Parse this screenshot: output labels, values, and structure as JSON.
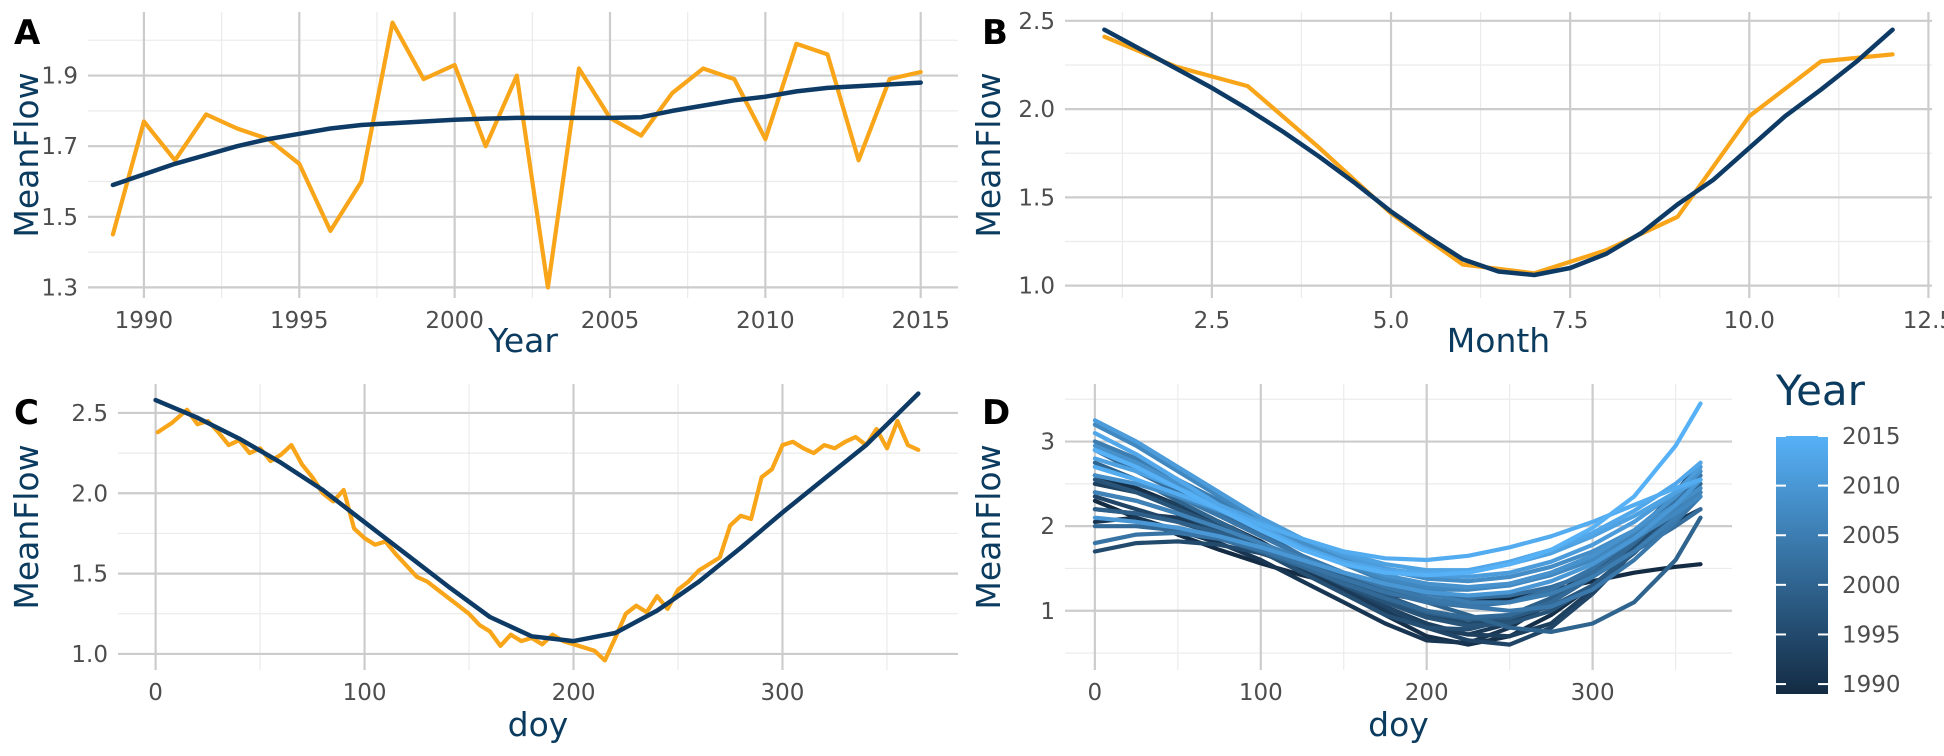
{
  "colors": {
    "observed": "#f9a51a",
    "smooth": "#0d3b66",
    "grid_major": "#cccccc",
    "grid_minor": "#ebebeb",
    "tick_text": "#4d4d4d",
    "axis_title": "#0b3b5e",
    "year_low": "#132b43",
    "year_high": "#56b1f7"
  },
  "chart_data": [
    {
      "panel": "A",
      "type": "line",
      "xlabel": "Year",
      "ylabel": "MeanFlow",
      "xlim": [
        1988.2,
        2016.2
      ],
      "ylim": [
        1.27,
        2.08
      ],
      "xticks": [
        1990,
        1995,
        2000,
        2005,
        2010,
        2015
      ],
      "yticks": [
        1.3,
        1.5,
        1.7,
        1.9
      ],
      "ytick_labels": [
        "1.3",
        "1.5",
        "1.7",
        "1.9"
      ],
      "grid": true,
      "series": [
        {
          "role": "observed",
          "x": [
            1989,
            1990,
            1991,
            1992,
            1993,
            1994,
            1995,
            1996,
            1997,
            1998,
            1999,
            2000,
            2001,
            2002,
            2003,
            2004,
            2005,
            2006,
            2007,
            2008,
            2009,
            2010,
            2011,
            2012,
            2013,
            2014,
            2015
          ],
          "y": [
            1.45,
            1.77,
            1.66,
            1.79,
            1.75,
            1.72,
            1.65,
            1.46,
            1.6,
            2.05,
            1.89,
            1.93,
            1.7,
            1.9,
            1.3,
            1.92,
            1.78,
            1.73,
            1.85,
            1.92,
            1.89,
            1.72,
            1.99,
            1.96,
            1.66,
            1.89,
            1.91
          ]
        },
        {
          "role": "smooth",
          "x": [
            1989,
            1990,
            1991,
            1992,
            1993,
            1994,
            1995,
            1996,
            1997,
            1998,
            1999,
            2000,
            2001,
            2002,
            2003,
            2004,
            2005,
            2006,
            2007,
            2008,
            2009,
            2010,
            2011,
            2012,
            2013,
            2014,
            2015
          ],
          "y": [
            1.59,
            1.62,
            1.65,
            1.675,
            1.7,
            1.72,
            1.735,
            1.75,
            1.76,
            1.765,
            1.77,
            1.775,
            1.778,
            1.78,
            1.78,
            1.78,
            1.78,
            1.782,
            1.8,
            1.815,
            1.83,
            1.84,
            1.855,
            1.865,
            1.87,
            1.875,
            1.88
          ]
        }
      ]
    },
    {
      "panel": "B",
      "type": "line",
      "xlabel": "Month",
      "ylabel": "MeanFlow",
      "xlim": [
        0.45,
        12.55
      ],
      "ylim": [
        0.93,
        2.55
      ],
      "xticks": [
        2.5,
        5.0,
        7.5,
        10.0,
        12.5
      ],
      "xtick_labels": [
        "2.5",
        "5.0",
        "7.5",
        "10.0",
        "12.5"
      ],
      "yticks": [
        1.0,
        1.5,
        2.0,
        2.5
      ],
      "ytick_labels": [
        "1.0",
        "1.5",
        "2.0",
        "2.5"
      ],
      "grid": true,
      "series": [
        {
          "role": "observed",
          "x": [
            1,
            2,
            3,
            4,
            5,
            6,
            7,
            8,
            9,
            10,
            11,
            12
          ],
          "y": [
            2.41,
            2.24,
            2.13,
            1.78,
            1.41,
            1.12,
            1.07,
            1.2,
            1.39,
            1.96,
            2.27,
            2.31
          ]
        },
        {
          "role": "smooth",
          "x": [
            1,
            1.5,
            2,
            2.5,
            3,
            3.5,
            4,
            4.5,
            5,
            5.5,
            6,
            6.5,
            7,
            7.5,
            8,
            8.5,
            9,
            9.5,
            10,
            10.5,
            11,
            11.5,
            12
          ],
          "y": [
            2.45,
            2.34,
            2.23,
            2.12,
            2.0,
            1.87,
            1.73,
            1.58,
            1.42,
            1.28,
            1.15,
            1.08,
            1.06,
            1.1,
            1.18,
            1.3,
            1.46,
            1.6,
            1.78,
            1.96,
            2.11,
            2.27,
            2.45
          ]
        }
      ]
    },
    {
      "panel": "C",
      "type": "line",
      "xlabel": "doy",
      "ylabel": "MeanFlow",
      "xlim": [
        -18,
        384
      ],
      "ylim": [
        0.9,
        2.68
      ],
      "xticks": [
        0,
        100,
        200,
        300
      ],
      "yticks": [
        1.0,
        1.5,
        2.0,
        2.5
      ],
      "ytick_labels": [
        "1.0",
        "1.5",
        "2.0",
        "2.5"
      ],
      "grid": true,
      "series": [
        {
          "role": "observed",
          "x": [
            1,
            8,
            15,
            20,
            25,
            30,
            35,
            40,
            45,
            50,
            55,
            60,
            65,
            70,
            75,
            80,
            85,
            90,
            95,
            100,
            105,
            110,
            115,
            120,
            125,
            130,
            135,
            140,
            145,
            150,
            155,
            160,
            165,
            170,
            175,
            180,
            185,
            190,
            195,
            200,
            205,
            210,
            215,
            220,
            225,
            230,
            235,
            240,
            245,
            250,
            255,
            260,
            265,
            270,
            275,
            280,
            285,
            290,
            295,
            300,
            305,
            310,
            315,
            320,
            325,
            330,
            335,
            340,
            345,
            350,
            355,
            360,
            365
          ],
          "y": [
            2.38,
            2.44,
            2.52,
            2.43,
            2.45,
            2.38,
            2.3,
            2.33,
            2.25,
            2.28,
            2.2,
            2.24,
            2.3,
            2.18,
            2.1,
            2.0,
            1.95,
            2.02,
            1.78,
            1.72,
            1.68,
            1.7,
            1.62,
            1.55,
            1.48,
            1.45,
            1.4,
            1.35,
            1.3,
            1.25,
            1.18,
            1.14,
            1.05,
            1.12,
            1.08,
            1.1,
            1.06,
            1.12,
            1.08,
            1.06,
            1.04,
            1.02,
            0.96,
            1.1,
            1.25,
            1.3,
            1.26,
            1.36,
            1.28,
            1.4,
            1.45,
            1.52,
            1.56,
            1.6,
            1.8,
            1.86,
            1.84,
            2.1,
            2.15,
            2.3,
            2.32,
            2.28,
            2.25,
            2.3,
            2.28,
            2.32,
            2.35,
            2.3,
            2.4,
            2.28,
            2.45,
            2.3,
            2.27
          ]
        },
        {
          "role": "smooth",
          "x": [
            0,
            20,
            40,
            60,
            80,
            100,
            120,
            140,
            160,
            180,
            200,
            220,
            240,
            260,
            280,
            300,
            320,
            340,
            365
          ],
          "y": [
            2.58,
            2.47,
            2.34,
            2.19,
            2.02,
            1.82,
            1.62,
            1.42,
            1.23,
            1.11,
            1.08,
            1.13,
            1.27,
            1.45,
            1.66,
            1.88,
            2.09,
            2.3,
            2.62
          ]
        }
      ]
    },
    {
      "panel": "D",
      "type": "line",
      "xlabel": "doy",
      "ylabel": "MeanFlow",
      "xlim": [
        -18,
        384
      ],
      "ylim": [
        0.3,
        3.68
      ],
      "xticks": [
        0,
        100,
        200,
        300
      ],
      "yticks": [
        1,
        2,
        3
      ],
      "grid": true,
      "legend": {
        "title": "Year",
        "position": "right",
        "type": "colorbar",
        "min": 1989,
        "max": 2015,
        "ticks": [
          1990,
          1995,
          2000,
          2005,
          2010,
          2015
        ]
      },
      "x": [
        0,
        25,
        50,
        75,
        100,
        125,
        150,
        175,
        200,
        225,
        250,
        275,
        300,
        325,
        350,
        365
      ],
      "series": [
        {
          "year": 1989,
          "y": [
            2.3,
            2.1,
            1.9,
            1.72,
            1.56,
            1.42,
            1.3,
            1.2,
            1.12,
            1.1,
            1.15,
            1.24,
            1.35,
            1.45,
            1.52,
            1.55
          ]
        },
        {
          "year": 1990,
          "y": [
            2.6,
            2.45,
            2.25,
            2.05,
            1.82,
            1.55,
            1.25,
            0.95,
            0.7,
            0.6,
            0.7,
            0.95,
            1.3,
            1.7,
            2.15,
            2.4
          ]
        },
        {
          "year": 1991,
          "y": [
            2.05,
            2.1,
            1.95,
            1.8,
            1.6,
            1.35,
            1.1,
            0.85,
            0.65,
            0.62,
            0.8,
            1.1,
            1.45,
            1.75,
            2.05,
            2.2
          ]
        },
        {
          "year": 1992,
          "y": [
            2.2,
            2.15,
            2.1,
            1.95,
            1.75,
            1.5,
            1.25,
            1.0,
            0.8,
            0.72,
            0.85,
            1.15,
            1.5,
            1.9,
            2.3,
            2.7
          ]
        },
        {
          "year": 1993,
          "y": [
            2.5,
            2.4,
            2.25,
            2.05,
            1.8,
            1.55,
            1.3,
            1.05,
            0.85,
            0.72,
            0.7,
            0.85,
            1.25,
            1.75,
            2.3,
            2.65
          ]
        },
        {
          "year": 1994,
          "y": [
            2.35,
            2.2,
            2.05,
            1.9,
            1.72,
            1.52,
            1.3,
            1.05,
            0.8,
            0.65,
            0.6,
            0.8,
            1.2,
            1.7,
            2.25,
            2.55
          ]
        },
        {
          "year": 1995,
          "y": [
            1.7,
            1.8,
            1.82,
            1.78,
            1.68,
            1.52,
            1.32,
            1.12,
            0.95,
            0.85,
            0.9,
            1.1,
            1.45,
            1.9,
            2.4,
            2.75
          ]
        },
        {
          "year": 1996,
          "y": [
            2.4,
            2.3,
            2.15,
            1.95,
            1.7,
            1.45,
            1.2,
            0.95,
            0.8,
            0.78,
            0.9,
            1.1,
            1.4,
            1.75,
            2.15,
            2.4
          ]
        },
        {
          "year": 1997,
          "y": [
            2.55,
            2.4,
            2.2,
            2.0,
            1.78,
            1.55,
            1.3,
            1.1,
            0.92,
            0.82,
            0.85,
            1.0,
            1.3,
            1.7,
            2.15,
            2.45
          ]
        },
        {
          "year": 1998,
          "y": [
            2.9,
            2.7,
            2.45,
            2.2,
            1.92,
            1.65,
            1.4,
            1.18,
            1.0,
            0.9,
            0.92,
            1.05,
            1.3,
            1.68,
            2.15,
            2.5
          ]
        },
        {
          "year": 1999,
          "y": [
            2.2,
            2.15,
            2.05,
            1.92,
            1.75,
            1.55,
            1.35,
            1.15,
            0.98,
            0.9,
            0.95,
            1.15,
            1.45,
            1.85,
            2.3,
            2.6
          ]
        },
        {
          "year": 2000,
          "y": [
            2.75,
            2.55,
            2.3,
            2.05,
            1.8,
            1.58,
            1.4,
            1.25,
            1.1,
            0.95,
            0.8,
            0.75,
            0.85,
            1.1,
            1.6,
            2.1
          ]
        },
        {
          "year": 2001,
          "y": [
            2.0,
            2.0,
            1.95,
            1.85,
            1.7,
            1.52,
            1.32,
            1.15,
            1.0,
            0.92,
            0.95,
            1.1,
            1.4,
            1.8,
            2.25,
            2.5
          ]
        },
        {
          "year": 2002,
          "y": [
            2.9,
            2.65,
            2.4,
            2.15,
            1.9,
            1.65,
            1.45,
            1.3,
            1.2,
            1.15,
            1.18,
            1.28,
            1.45,
            1.7,
            2.0,
            2.2
          ]
        },
        {
          "year": 2003,
          "y": [
            1.8,
            1.9,
            1.92,
            1.85,
            1.72,
            1.55,
            1.38,
            1.22,
            1.1,
            1.05,
            1.1,
            1.25,
            1.5,
            1.85,
            2.3,
            2.6
          ]
        },
        {
          "year": 2004,
          "y": [
            2.7,
            2.55,
            2.35,
            2.12,
            1.88,
            1.65,
            1.45,
            1.28,
            1.15,
            1.05,
            1.0,
            1.05,
            1.25,
            1.6,
            2.05,
            2.35
          ]
        },
        {
          "year": 2005,
          "y": [
            3.0,
            2.8,
            2.55,
            2.3,
            2.05,
            1.8,
            1.55,
            1.35,
            1.2,
            1.1,
            1.1,
            1.2,
            1.4,
            1.7,
            2.1,
            2.4
          ]
        },
        {
          "year": 2006,
          "y": [
            2.4,
            2.3,
            2.15,
            1.98,
            1.8,
            1.62,
            1.45,
            1.32,
            1.25,
            1.25,
            1.32,
            1.45,
            1.65,
            1.9,
            2.2,
            2.4
          ]
        },
        {
          "year": 2007,
          "y": [
            3.2,
            2.95,
            2.65,
            2.35,
            2.05,
            1.78,
            1.55,
            1.38,
            1.28,
            1.25,
            1.3,
            1.42,
            1.6,
            1.85,
            2.15,
            2.35
          ]
        },
        {
          "year": 2008,
          "y": [
            2.6,
            2.5,
            2.35,
            2.18,
            2.0,
            1.8,
            1.62,
            1.48,
            1.38,
            1.35,
            1.4,
            1.52,
            1.7,
            1.95,
            2.25,
            2.45
          ]
        },
        {
          "year": 2009,
          "y": [
            2.95,
            2.75,
            2.5,
            2.25,
            2.0,
            1.78,
            1.58,
            1.42,
            1.32,
            1.28,
            1.32,
            1.45,
            1.65,
            1.95,
            2.35,
            2.65
          ]
        },
        {
          "year": 2010,
          "y": [
            2.1,
            2.05,
            1.98,
            1.88,
            1.75,
            1.6,
            1.45,
            1.32,
            1.22,
            1.18,
            1.22,
            1.35,
            1.55,
            1.85,
            2.25,
            2.55
          ]
        },
        {
          "year": 2011,
          "y": [
            3.25,
            3.0,
            2.7,
            2.4,
            2.1,
            1.85,
            1.65,
            1.5,
            1.42,
            1.4,
            1.45,
            1.58,
            1.78,
            2.05,
            2.4,
            2.7
          ]
        },
        {
          "year": 2012,
          "y": [
            2.8,
            2.65,
            2.45,
            2.25,
            2.05,
            1.85,
            1.68,
            1.55,
            1.48,
            1.48,
            1.55,
            1.68,
            1.88,
            2.12,
            2.4,
            2.55
          ]
        },
        {
          "year": 2013,
          "y": [
            3.1,
            2.85,
            2.55,
            2.25,
            1.98,
            1.75,
            1.58,
            1.48,
            1.45,
            1.48,
            1.58,
            1.72,
            1.92,
            2.18,
            2.5,
            2.75
          ]
        },
        {
          "year": 2014,
          "y": [
            2.7,
            2.55,
            2.38,
            2.2,
            2.02,
            1.85,
            1.7,
            1.62,
            1.6,
            1.65,
            1.75,
            1.88,
            2.05,
            2.25,
            2.45,
            2.55
          ]
        },
        {
          "year": 2015,
          "y": [
            2.9,
            2.7,
            2.45,
            2.2,
            1.95,
            1.72,
            1.55,
            1.45,
            1.42,
            1.45,
            1.55,
            1.72,
            1.98,
            2.35,
            2.95,
            3.45
          ]
        }
      ]
    }
  ]
}
